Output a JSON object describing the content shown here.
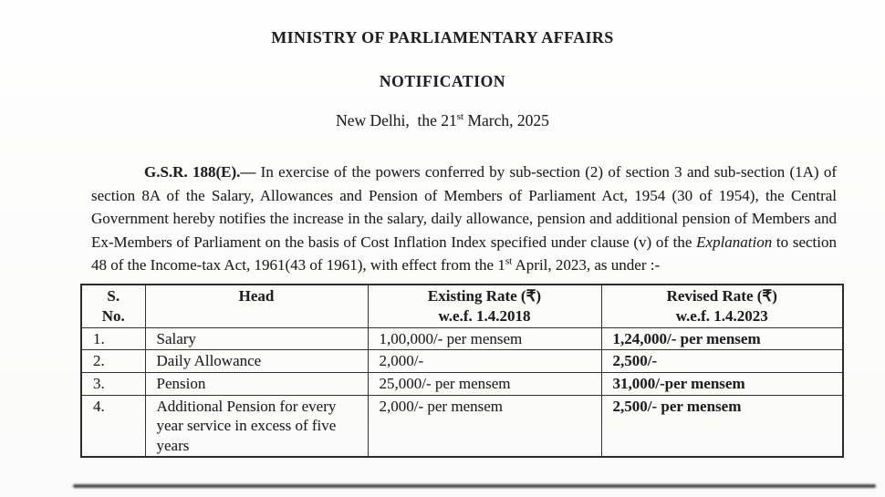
{
  "page": {
    "title": "MINISTRY OF PARLIAMENTARY AFFAIRS",
    "subtitle": "NOTIFICATION",
    "dateline": {
      "part1": "New Delhi,  the 21",
      "sup": "st",
      "part2": " March, 2025"
    }
  },
  "paragraph": {
    "gsr": "G.S.R. 188(E).—",
    "part1": " In exercise of the powers conferred by sub-section (2) of section 3 and sub-section (1A) of section 8A of the Salary, Allowances and Pension of Members of Parliament Act, 1954 (30 of 1954), the Central Government hereby notifies the increase in the salary, daily allowance, pension and additional pension of Members and Ex-Members of Parliament on the basis of Cost Inflation Index specified under clause (v) of the ",
    "italic": "Explanation",
    "part2": " to section 48 of the Income-tax Act, 1961(43 of 1961), with effect from the 1",
    "sup": "st",
    "part3": " April, 2023, as under :-"
  },
  "table": {
    "headers": [
      {
        "line1": "S.",
        "line2": "No."
      },
      {
        "line1": "Head",
        "line2": ""
      },
      {
        "line1": "Existing Rate (₹)",
        "line2": "w.e.f. 1.4.2018"
      },
      {
        "line1": "Revised Rate (₹)",
        "line2": "w.e.f. 1.4.2023"
      }
    ],
    "rows": [
      {
        "sno": "1.",
        "head": "Salary",
        "existing": "1,00,000/- per mensem",
        "revised": "1,24,000/- per mensem"
      },
      {
        "sno": "2.",
        "head": "Daily Allowance",
        "existing": "2,000/-",
        "revised": "2,500/-"
      },
      {
        "sno": "3.",
        "head": "Pension",
        "existing": "25,000/- per mensem",
        "revised": "31,000/-per mensem"
      },
      {
        "sno": "4.",
        "head": "Additional Pension for every year service in excess of five years",
        "existing": "2,000/- per mensem",
        "revised": "2,500/- per mensem"
      }
    ]
  }
}
